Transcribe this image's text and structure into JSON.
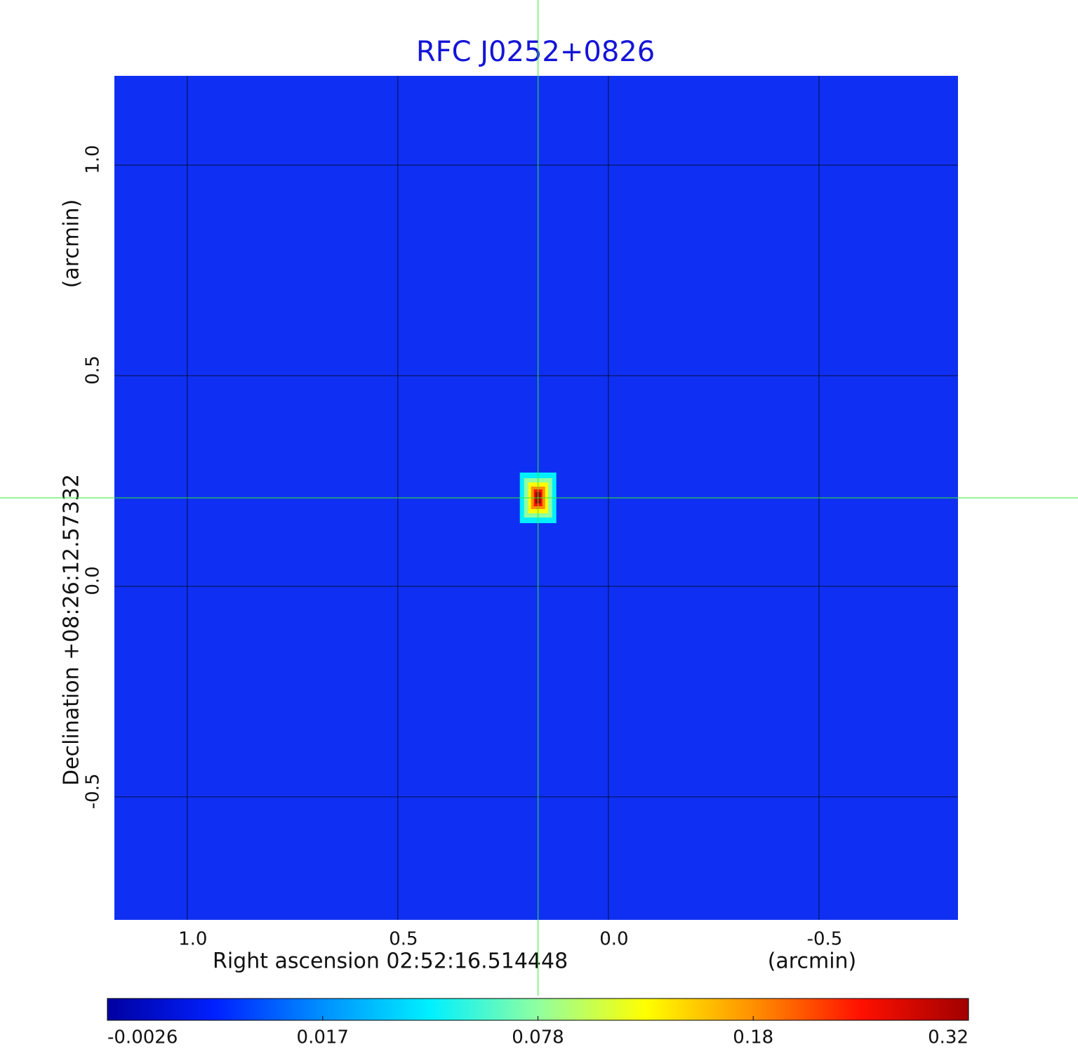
{
  "chart_data": {
    "type": "image",
    "title": "RFC J0252+0826",
    "x_label": "Right ascension  02:52:16.514448",
    "x_unit": "(arcmin)",
    "y_label": "Declination  +08:26:12.57332",
    "y_unit": "(arcmin)",
    "xlim": [
      1.173,
      -0.83
    ],
    "ylim": [
      -0.792,
      1.212
    ],
    "xticks": [
      {
        "value": 1.0,
        "label": "1.0"
      },
      0.5,
      {
        "value": 0.0,
        "label": "0.0"
      },
      -0.5
    ],
    "yticks": [
      {
        "value": 1.0,
        "label": "1.0"
      },
      0.5,
      {
        "value": 0.0,
        "label": "0.0"
      },
      -0.5
    ],
    "grid": true,
    "background_color": "#0f30f2",
    "source": {
      "x": 0.167,
      "y": 0.21,
      "peak": 0.32
    },
    "crosshair": {
      "x": 0.167,
      "y": 0.21,
      "color": "#33ee33"
    },
    "colorbar": {
      "ticks": [
        -0.0026,
        0.017,
        0.078,
        0.18,
        0.32
      ],
      "colors": [
        "#0000a0",
        "#0020ff",
        "#0090ff",
        "#00f0ff",
        "#90ffa0",
        "#ffff00",
        "#ff9000",
        "#ff1000",
        "#a00000"
      ]
    }
  }
}
